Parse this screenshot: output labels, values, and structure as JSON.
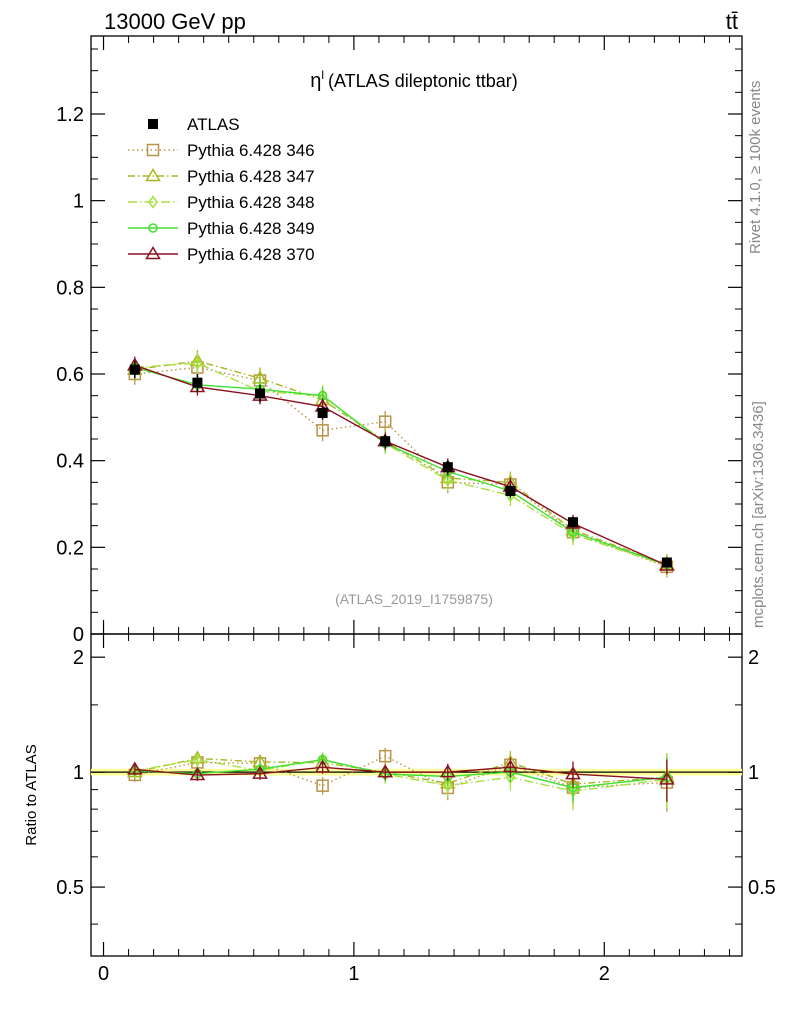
{
  "header": {
    "left_label": "13000 GeV pp",
    "right_label": "tt̄"
  },
  "side_labels": {
    "rivet": "Rivet 4.1.0, ≥ 100k events",
    "mcplots": "mcplots.cern.ch [arXiv:1306.3436]"
  },
  "colors": {
    "axis": "#000000",
    "watermark": "#999999",
    "side_text": "#888888",
    "band": "#ffff99"
  },
  "chart_data": {
    "type": "line",
    "title_symbol": "η",
    "title_superscript": "l",
    "title_text": "(ATLAS dileptonic ttbar)",
    "analysis_label": "(ATLAS_2019_I1759875)",
    "xlim": [
      -0.05,
      2.55
    ],
    "main_ylim": [
      0,
      1.38
    ],
    "ratio_ylim": [
      0.33,
      2.3
    ],
    "main_yticks": [
      {
        "v": 0,
        "label": "0"
      },
      {
        "v": 0.2,
        "label": "0.2"
      },
      {
        "v": 0.4,
        "label": "0.4"
      },
      {
        "v": 0.6,
        "label": "0.6"
      },
      {
        "v": 0.8,
        "label": "0.8"
      },
      {
        "v": 1.0,
        "label": "1"
      },
      {
        "v": 1.2,
        "label": "1.2"
      }
    ],
    "ratio_yticks": [
      {
        "v": 0.5,
        "label": "0.5"
      },
      {
        "v": 1,
        "label": "1"
      },
      {
        "v": 2,
        "label": "2"
      }
    ],
    "ratio_ylabel": "Ratio to ATLAS",
    "xticks": [
      {
        "v": 0,
        "label": "0"
      },
      {
        "v": 1,
        "label": "1"
      },
      {
        "v": 2,
        "label": "2"
      }
    ],
    "x": [
      0.125,
      0.375,
      0.625,
      0.875,
      1.125,
      1.375,
      1.625,
      1.875,
      2.25
    ],
    "data": {
      "name": "ATLAS",
      "color": "#000000",
      "values": [
        0.61,
        0.58,
        0.555,
        0.51,
        0.445,
        0.385,
        0.33,
        0.258,
        0.165
      ],
      "errors": [
        0.02,
        0.02,
        0.02,
        0.015,
        0.015,
        0.015,
        0.015,
        0.012,
        0.01
      ]
    },
    "series": [
      {
        "name": "Pythia 6.428 346",
        "color": "#b8944a",
        "dash": "1.5,3",
        "marker": "square",
        "values": [
          0.6,
          0.615,
          0.585,
          0.47,
          0.49,
          0.35,
          0.345,
          0.235,
          0.155
        ],
        "error": 0.025
      },
      {
        "name": "Pythia 6.428 347",
        "color": "#a8b820",
        "dash": "7,3,1.5,3",
        "marker": "triangle",
        "values": [
          0.61,
          0.63,
          0.59,
          0.54,
          0.445,
          0.36,
          0.35,
          0.24,
          0.16
        ],
        "error": 0.025
      },
      {
        "name": "Pythia 6.428 348",
        "color": "#a8e040",
        "dash": "9,3,1.5,3",
        "marker": "diamond",
        "values": [
          0.615,
          0.625,
          0.56,
          0.55,
          0.44,
          0.355,
          0.32,
          0.23,
          0.158
        ],
        "error": 0.025
      },
      {
        "name": "Pythia 6.428 349",
        "color": "#40e030",
        "dash": "",
        "marker": "circle",
        "values": [
          0.615,
          0.575,
          0.565,
          0.55,
          0.44,
          0.375,
          0.33,
          0.235,
          0.16
        ],
        "error": 0.02
      },
      {
        "name": "Pythia 6.428 370",
        "color": "#8b1020",
        "dash": "",
        "marker": "triangle",
        "values": [
          0.62,
          0.57,
          0.55,
          0.525,
          0.445,
          0.385,
          0.34,
          0.255,
          0.158
        ],
        "error": 0.02
      }
    ]
  }
}
